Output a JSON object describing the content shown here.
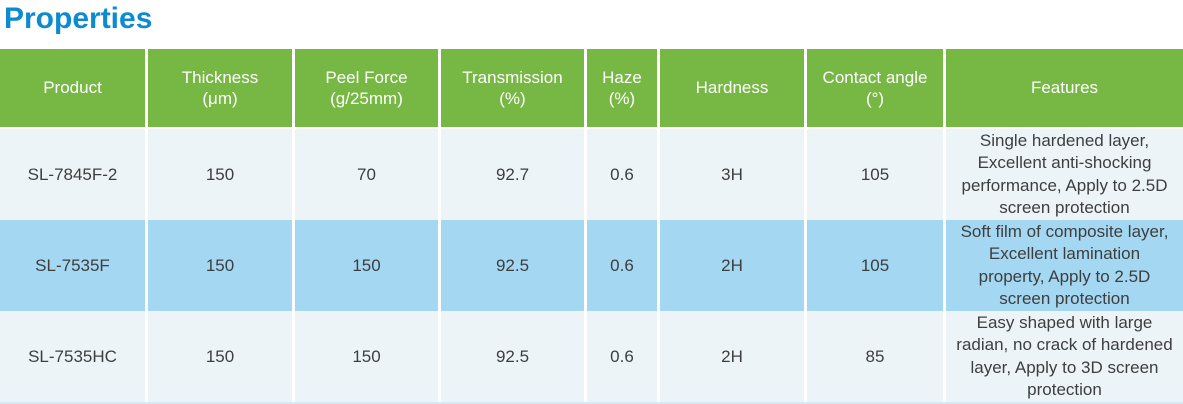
{
  "page_title": "Properties",
  "colors": {
    "title_blue": "#0d8bd1",
    "header_green": "#76b843",
    "row_light": "#edf4f8",
    "row_highlight_blue": "#a4d7f1",
    "body_text": "#3e3e3e",
    "header_text": "#ffffff"
  },
  "table": {
    "columns": [
      {
        "label": "Product",
        "sub": ""
      },
      {
        "label": "Thickness",
        "sub": "(μm)"
      },
      {
        "label": "Peel Force",
        "sub": "(g/25mm)"
      },
      {
        "label": "Transmission",
        "sub": "(%)"
      },
      {
        "label": "Haze",
        "sub": "(%)"
      },
      {
        "label": "Hardness",
        "sub": ""
      },
      {
        "label": "Contact angle",
        "sub": "(°)"
      },
      {
        "label": "Features",
        "sub": ""
      }
    ],
    "rows": [
      {
        "product": "SL-7845F-2",
        "thickness_um": "150",
        "peel_force_g_25mm": "70",
        "transmission_pct": "92.7",
        "haze_pct": "0.6",
        "hardness": "3H",
        "contact_angle_deg": "105",
        "features": "Single hardened layer, Excellent anti-shocking performance, Apply to 2.5D screen protection",
        "highlighted": false
      },
      {
        "product": "SL-7535F",
        "thickness_um": "150",
        "peel_force_g_25mm": "150",
        "transmission_pct": "92.5",
        "haze_pct": "0.6",
        "hardness": "2H",
        "contact_angle_deg": "105",
        "features": "Soft film of composite layer, Excellent lamination property, Apply to 2.5D screen protection",
        "highlighted": true
      },
      {
        "product": "SL-7535HC",
        "thickness_um": "150",
        "peel_force_g_25mm": "150",
        "transmission_pct": "92.5",
        "haze_pct": "0.6",
        "hardness": "2H",
        "contact_angle_deg": "85",
        "features": "Easy shaped with large radian, no crack of hardened layer, Apply to 3D screen protection",
        "highlighted": false
      }
    ]
  }
}
